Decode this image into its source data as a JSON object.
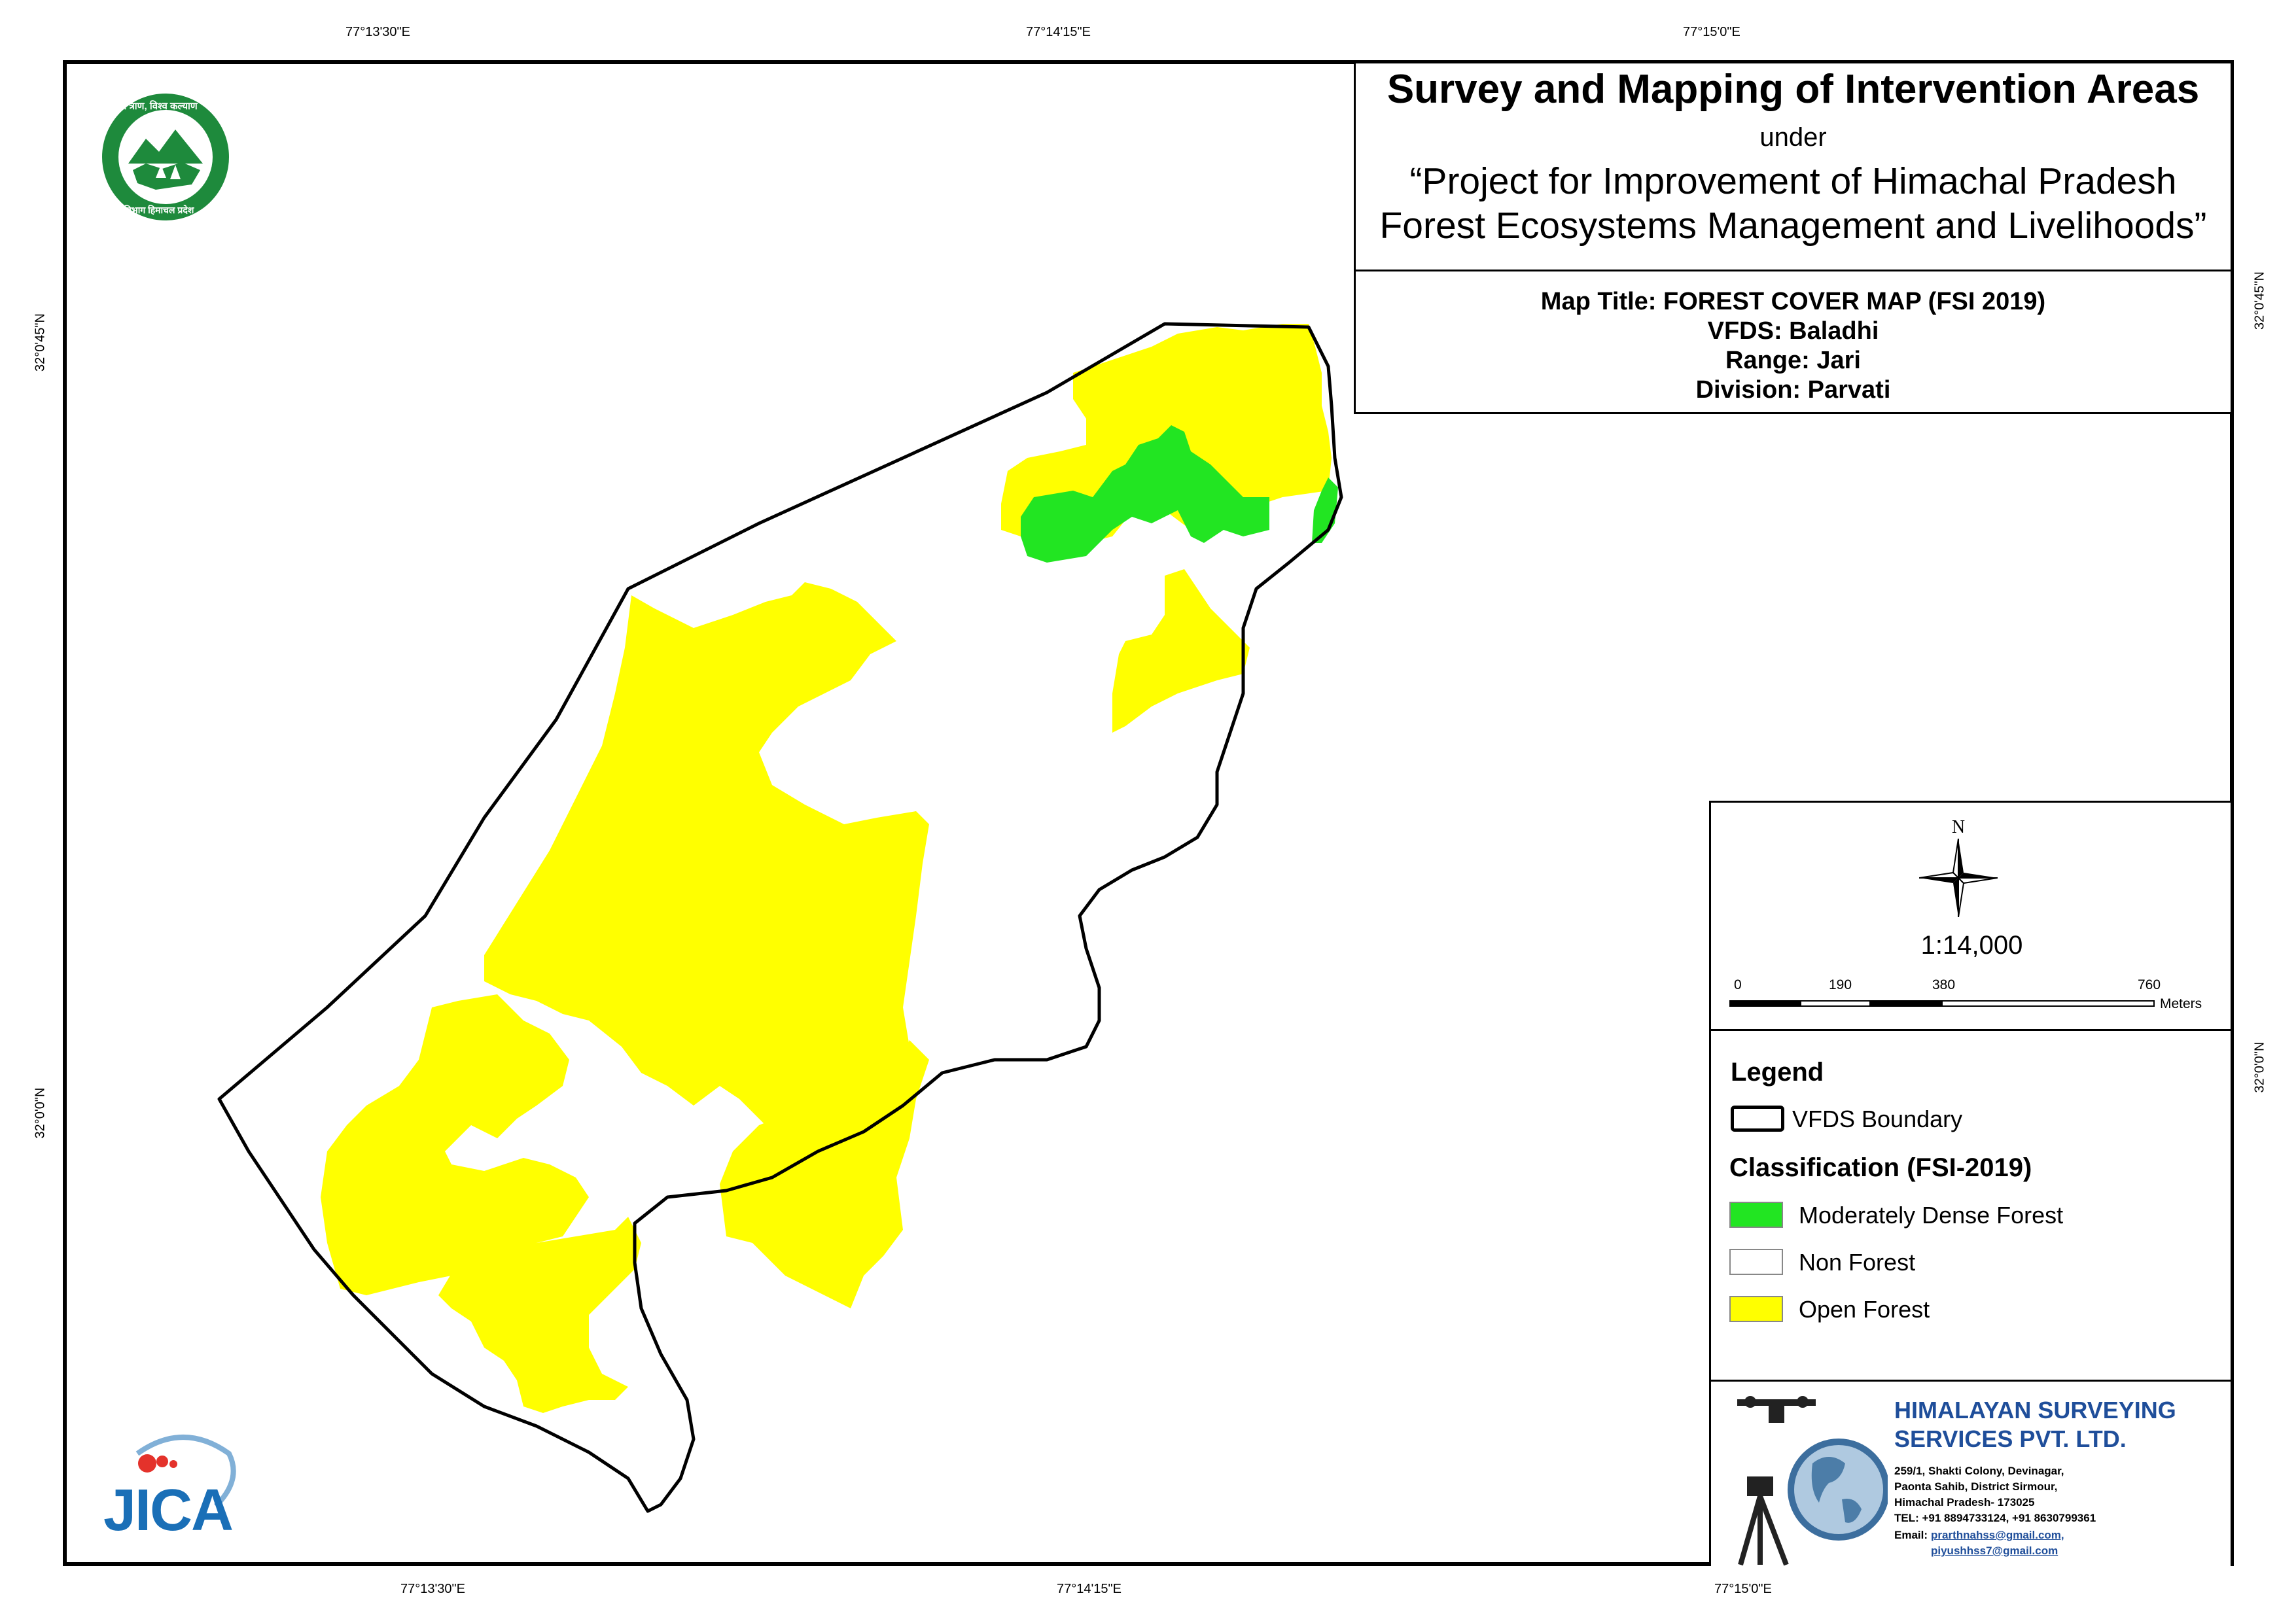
{
  "coords": {
    "top": [
      "77°13'30\"E",
      "77°14'15\"E",
      "77°15'0\"E"
    ],
    "bottom": [
      "77°13'30\"E",
      "77°14'15\"E",
      "77°15'0\"E"
    ],
    "left": [
      "32°0'45\"N",
      "32°0'0\"N"
    ],
    "right": [
      "32°0'45\"N",
      "32°0'0\"N"
    ]
  },
  "title": {
    "main": "Survey and Mapping of Intervention Areas",
    "under": "under",
    "project_line1": "“Project for Improvement of Himachal Pradesh",
    "project_line2": "Forest Ecosystems Management and Livelihoods”"
  },
  "map_info": {
    "title": "Map Title: FOREST COVER MAP (FSI 2019)",
    "vfds": "VFDS: Baladhi",
    "range": "Range: Jari",
    "division": "Division: Parvati"
  },
  "north_arrow": {
    "label": "N"
  },
  "scale": {
    "ratio": "1:14,000",
    "ticks": [
      "0",
      "190",
      "380",
      "760"
    ],
    "unit": "Meters"
  },
  "legend": {
    "heading": "Legend",
    "boundary_label": "VFDS Boundary",
    "classification_heading": "Classification (FSI-2019)",
    "classes": [
      {
        "label": "Moderately Dense Forest",
        "color": "#22E522"
      },
      {
        "label": "Non Forest",
        "color": "#FFFFFF"
      },
      {
        "label": "Open Forest",
        "color": "#FFFF00"
      }
    ]
  },
  "company": {
    "name_line1": "HIMALAYAN SURVEYING",
    "name_line2": "SERVICES PVT. LTD.",
    "address1": "259/1, Shakti Colony, Devinagar,",
    "address2": "Paonta Sahib, District Sirmour,",
    "address3": "Himachal Pradesh- 173025",
    "tel": "TEL: +91 8894733124, +91 8630799361",
    "email_label": "Email:",
    "email1": "prarthnahss@gmail.com,",
    "email2": "piyushhss7@gmail.com",
    "color": "#1F4E9A"
  },
  "logos": {
    "forest_dept_top": "वन श्री त्राण, विश्व कल्याण",
    "forest_dept_bottom": "वन विभाग हिमाचल प्रदेश",
    "jica": "JICA"
  },
  "colors": {
    "open_forest": "#FFFF00",
    "moderately_dense_forest": "#22E522",
    "boundary": "#000000",
    "logo_green": "#1E8A3C",
    "jica_blue": "#1A6FB7",
    "jica_red": "#E4322B"
  }
}
